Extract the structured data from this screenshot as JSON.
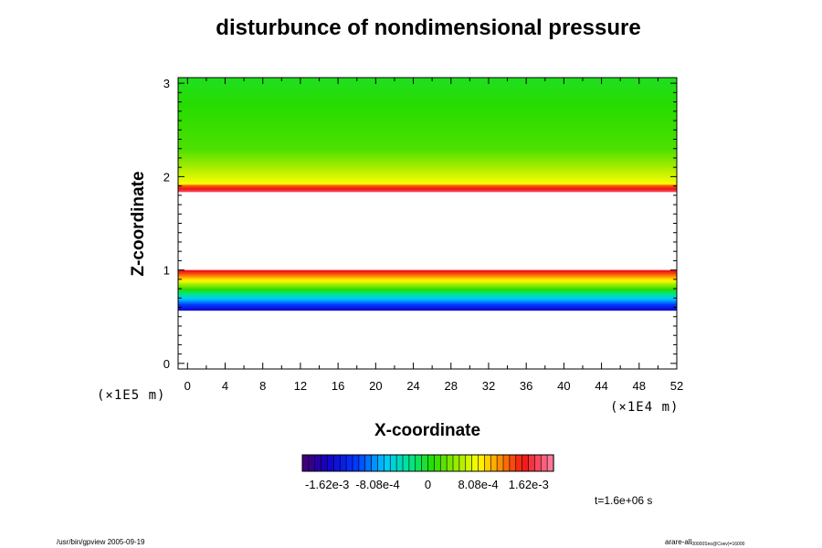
{
  "chart_data": {
    "type": "heatmap",
    "title": "disturbunce of nondimensional pressure",
    "xlabel": "X-coordinate",
    "ylabel": "Z-coordinate",
    "x_scale_label": "(×1E4 m)",
    "y_scale_label": "(×1E5 m)",
    "x_ticks": [
      "0",
      "4",
      "8",
      "12",
      "16",
      "20",
      "24",
      "28",
      "32",
      "36",
      "40",
      "44",
      "48",
      "52"
    ],
    "y_ticks": [
      "0",
      "1",
      "2",
      "3"
    ],
    "xlim": [
      -1,
      52
    ],
    "ylim": [
      -0.06,
      3.06
    ],
    "colorbar_ticks": [
      "-1.62e-3",
      "-8.08e-4",
      "0",
      "8.08e-4",
      "1.62e-3"
    ],
    "colorbar_range": [
      -0.00202,
      0.00202
    ],
    "bands": [
      {
        "z_bottom": 0.57,
        "z_top": 1.0,
        "value_bottom": -0.00162,
        "value_top": 0.00162
      },
      {
        "z_bottom": 1.84,
        "z_top": 1.92,
        "value_bottom": 0.0018,
        "value_top": 0.0012
      },
      {
        "z_bottom": 1.92,
        "z_top": 2.3,
        "value_bottom": 0.000808,
        "value_top": 0.0002
      },
      {
        "z_bottom": 2.3,
        "z_top": 3.06,
        "value_bottom": 0.0002,
        "value_top": 0
      }
    ],
    "time_label": "t=1.6e+06 s"
  },
  "footer": {
    "left": "/usr/bin/gpview 2005-09-19",
    "right_main": "arare-all",
    "right_sub": "00000Sno@Coev)=16000"
  }
}
